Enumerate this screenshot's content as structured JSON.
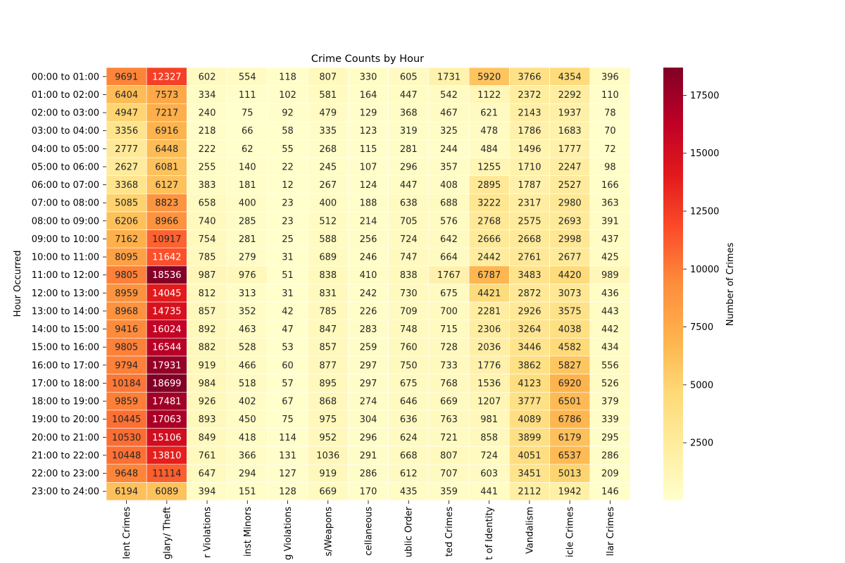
{
  "chart_data": {
    "type": "heatmap",
    "title": "Crime Counts by Hour",
    "ylabel": "Hour Occurred",
    "colorbar_label": "Number of Crimes",
    "colorbar_ticks": [
      2500,
      5000,
      7500,
      10000,
      12500,
      15000,
      17500
    ],
    "colorbar_range": [
      12,
      18699
    ],
    "colormap": "YlOrRd",
    "rows": [
      "00:00 to 01:00",
      "01:00 to 02:00",
      "02:00 to 03:00",
      "03:00 to 04:00",
      "04:00 to 05:00",
      "05:00 to 06:00",
      "06:00 to 07:00",
      "07:00 to 08:00",
      "08:00 to 09:00",
      "09:00 to 10:00",
      "10:00 to 11:00",
      "11:00 to 12:00",
      "12:00 to 13:00",
      "13:00 to 14:00",
      "14:00 to 15:00",
      "15:00 to 16:00",
      "16:00 to 17:00",
      "17:00 to 18:00",
      "18:00 to 19:00",
      "19:00 to 20:00",
      "20:00 to 21:00",
      "21:00 to 22:00",
      "22:00 to 23:00",
      "23:00 to 24:00"
    ],
    "columns": [
      "lent Crimes",
      "glary/ Theft",
      "r Violations",
      "inst Minors",
      "g Violations",
      "s/Weapons",
      "cellaneous",
      "ublic Order",
      "ted Crimes",
      "t of Identity",
      "Vandalism",
      "icle Crimes",
      "llar Crimes"
    ],
    "values": [
      [
        9691,
        12327,
        602,
        554,
        118,
        807,
        330,
        605,
        1731,
        5920,
        3766,
        4354,
        396
      ],
      [
        6404,
        7573,
        334,
        111,
        102,
        581,
        164,
        447,
        542,
        1122,
        2372,
        2292,
        110
      ],
      [
        4947,
        7217,
        240,
        75,
        92,
        479,
        129,
        368,
        467,
        621,
        2143,
        1937,
        78
      ],
      [
        3356,
        6916,
        218,
        66,
        58,
        335,
        123,
        319,
        325,
        478,
        1786,
        1683,
        70
      ],
      [
        2777,
        6448,
        222,
        62,
        55,
        268,
        115,
        281,
        244,
        484,
        1496,
        1777,
        72
      ],
      [
        2627,
        6081,
        255,
        140,
        22,
        245,
        107,
        296,
        357,
        1255,
        1710,
        2247,
        98
      ],
      [
        3368,
        6127,
        383,
        181,
        12,
        267,
        124,
        447,
        408,
        2895,
        1787,
        2527,
        166
      ],
      [
        5085,
        8823,
        658,
        400,
        23,
        400,
        188,
        638,
        688,
        3222,
        2317,
        2980,
        363
      ],
      [
        6206,
        8966,
        740,
        285,
        23,
        512,
        214,
        705,
        576,
        2768,
        2575,
        2693,
        391
      ],
      [
        7162,
        10917,
        754,
        281,
        25,
        588,
        256,
        724,
        642,
        2666,
        2668,
        2998,
        437
      ],
      [
        8095,
        11642,
        785,
        279,
        31,
        689,
        246,
        747,
        664,
        2442,
        2761,
        2677,
        425
      ],
      [
        9805,
        18536,
        987,
        976,
        51,
        838,
        410,
        838,
        1767,
        6787,
        3483,
        4420,
        989
      ],
      [
        8959,
        14045,
        812,
        313,
        31,
        831,
        242,
        730,
        675,
        4421,
        2872,
        3073,
        436
      ],
      [
        8968,
        14735,
        857,
        352,
        42,
        785,
        226,
        709,
        700,
        2281,
        2926,
        3575,
        443
      ],
      [
        9416,
        16024,
        892,
        463,
        47,
        847,
        283,
        748,
        715,
        2306,
        3264,
        4038,
        442
      ],
      [
        9805,
        16544,
        882,
        528,
        53,
        857,
        259,
        760,
        728,
        2036,
        3446,
        4582,
        434
      ],
      [
        9794,
        17931,
        919,
        466,
        60,
        877,
        297,
        750,
        733,
        1776,
        3862,
        5827,
        556
      ],
      [
        10184,
        18699,
        984,
        518,
        57,
        895,
        297,
        675,
        768,
        1536,
        4123,
        6920,
        526
      ],
      [
        9859,
        17481,
        926,
        402,
        67,
        868,
        274,
        646,
        669,
        1207,
        3777,
        6501,
        379
      ],
      [
        10445,
        17063,
        893,
        450,
        75,
        975,
        304,
        636,
        763,
        981,
        4089,
        6786,
        339
      ],
      [
        10530,
        15106,
        849,
        418,
        114,
        952,
        296,
        624,
        721,
        858,
        3899,
        6179,
        295
      ],
      [
        10448,
        13810,
        761,
        366,
        131,
        1036,
        291,
        668,
        807,
        724,
        4051,
        6537,
        286
      ],
      [
        9648,
        11114,
        647,
        294,
        127,
        919,
        286,
        612,
        707,
        603,
        3451,
        5013,
        209
      ],
      [
        6194,
        6089,
        394,
        151,
        128,
        669,
        170,
        435,
        359,
        441,
        2112,
        1942,
        146
      ]
    ]
  }
}
